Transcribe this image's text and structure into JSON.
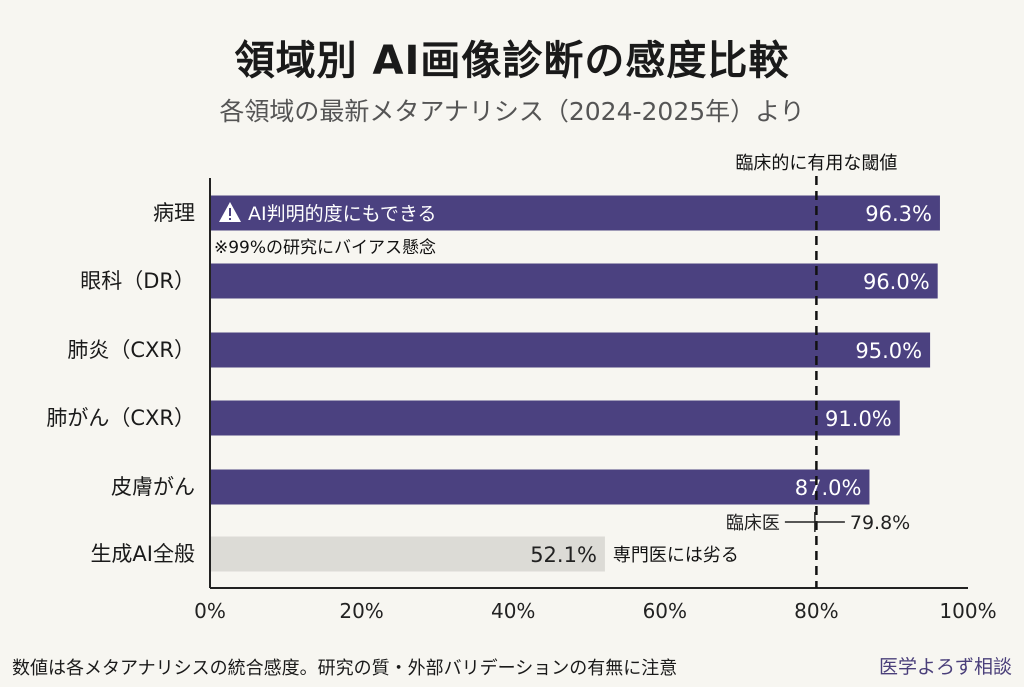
{
  "title": "領域別 AI画像診断の感度比較",
  "subtitle": "各領域の最新メタアナリシス（2024-2025年）より",
  "footnote": "数値は各メタアナリシスの統合感度。研究の質・外部バリデーションの有無に注意",
  "brand": "医学よろず相談",
  "colors": {
    "bar": "#4b4180",
    "bar_general": "#dcdbd6",
    "background": "#f7f6f1"
  },
  "chart_data": {
    "type": "bar",
    "orientation": "horizontal",
    "categories": [
      "病理",
      "眼科（DR）",
      "肺炎（CXR）",
      "肺がん（CXR）",
      "皮膚がん",
      "生成AI全般"
    ],
    "values": [
      96.3,
      96.0,
      95.0,
      91.0,
      87.0,
      52.1
    ],
    "value_labels": [
      "96.3%",
      "96.0%",
      "95.0%",
      "91.0%",
      "87.0%",
      "52.1%"
    ],
    "xlim": [
      0,
      100
    ],
    "xticks": [
      0,
      20,
      40,
      60,
      80,
      100
    ],
    "xtick_labels": [
      "0%",
      "20%",
      "40%",
      "60%",
      "80%",
      "100%"
    ],
    "grid": false,
    "threshold": {
      "value": 80,
      "label": "臨床的に有用な閾値"
    },
    "clinician": {
      "value": 79.8,
      "label": "臨床医",
      "value_label": "79.8%"
    },
    "annotations": {
      "pathology_warning": "AI判明的度にもできる",
      "pathology_note": "※99%の研究にバイアス懸念",
      "general_note": "専門医には劣る"
    },
    "warning_icon": "warning-triangle-icon"
  }
}
